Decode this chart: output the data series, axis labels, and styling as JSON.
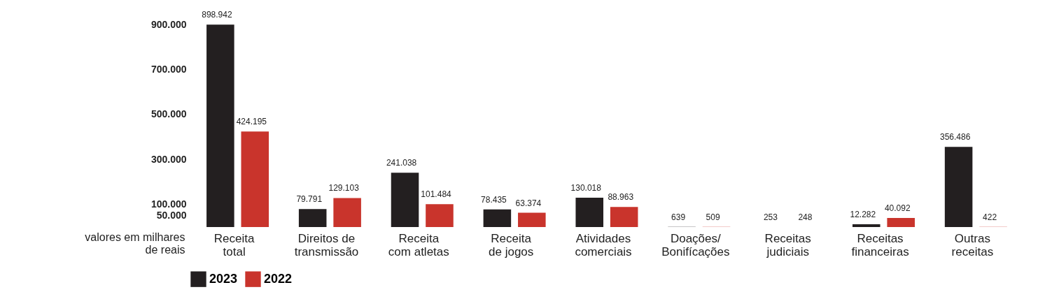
{
  "chart_data": {
    "type": "bar",
    "categories": [
      "Receita\ntotal",
      "Direitos de\ntransmissão",
      "Receita\ncom atletas",
      "Receita\nde jogos",
      "Atividades\ncomerciais",
      "Doações/\nBonifícações",
      "Receitas\njudiciais",
      "Receitas\nfinanceiras",
      "Outras\nreceitas"
    ],
    "series": [
      {
        "name": "2023",
        "color": "#231f20",
        "values": [
          898942,
          79791,
          241038,
          78435,
          130018,
          639,
          253,
          12282,
          356486
        ],
        "value_labels": [
          "898.942",
          "79.791",
          "241.038",
          "78.435",
          "130.018",
          "639",
          "253",
          "12.282",
          "356.486"
        ]
      },
      {
        "name": "2022",
        "color": "#c9342c",
        "values": [
          424195,
          129103,
          101484,
          63374,
          88963,
          509,
          248,
          40092,
          422
        ],
        "value_labels": [
          "424.195",
          "129.103",
          "101.484",
          "63.374",
          "88.963",
          "509",
          "248",
          "40.092",
          "422"
        ]
      }
    ],
    "ylabel": "valores em milhares de reais",
    "ylim": [
      0,
      900000
    ],
    "yticks": [
      {
        "value": 50000,
        "label": "50.000"
      },
      {
        "value": 100000,
        "label": "100.000"
      },
      {
        "value": 300000,
        "label": "300.000"
      },
      {
        "value": 500000,
        "label": "500.000"
      },
      {
        "value": 700000,
        "label": "700.000"
      },
      {
        "value": 900000,
        "label": "900.000"
      }
    ],
    "legend": "bottom",
    "grid": false
  }
}
